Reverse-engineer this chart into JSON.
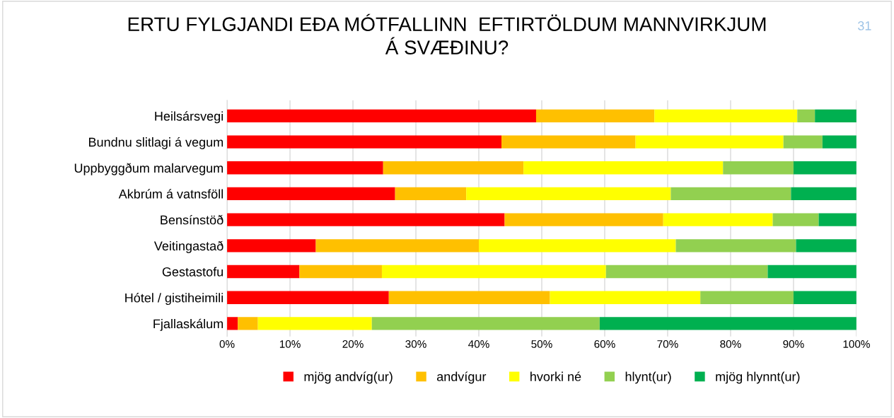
{
  "chart_data": {
    "type": "bar",
    "orientation": "horizontal",
    "stacked": true,
    "title": "ERTU FYLGJANDI EÐA MÓTFALLINN  EFTIRTÖLDUM MANNVIRKJUM\nÁ SVÆÐINU?",
    "annotations": [
      "31"
    ],
    "categories": [
      "Heilsársvegi",
      "Bundnu slitlagi á vegum",
      "Uppbyggðum malarvegum",
      "Akbrúm á vatnsföll",
      "Bensínstöð",
      "Veitingastað",
      "Gestastofu",
      "Hótel / gistiheimili",
      "Fjallaskálum"
    ],
    "series": [
      {
        "name": "mjög andvíg(ur)",
        "color": "#ff0000",
        "values": [
          49.1,
          43.6,
          24.8,
          26.7,
          44.1,
          14.1,
          11.5,
          25.7,
          1.7
        ]
      },
      {
        "name": "andvígur",
        "color": "#ffc000",
        "values": [
          18.8,
          21.3,
          22.3,
          11.3,
          25.2,
          25.9,
          13.1,
          25.6,
          3.2
        ]
      },
      {
        "name": "hvorki né",
        "color": "#ffff00",
        "values": [
          22.7,
          23.5,
          31.7,
          32.5,
          17.4,
          31.3,
          35.6,
          23.9,
          18.1
        ]
      },
      {
        "name": "hlynt(ur)",
        "color": "#92d050",
        "values": [
          2.8,
          6.2,
          11.2,
          19.1,
          7.3,
          19.1,
          25.7,
          14.8,
          36.2
        ]
      },
      {
        "name": "mjög hlynnt(ur)",
        "color": "#00b050",
        "values": [
          6.6,
          5.4,
          10.0,
          10.4,
          6.0,
          9.6,
          14.1,
          10.0,
          40.8
        ]
      }
    ],
    "xlim": [
      0,
      100
    ],
    "xticks": [
      {
        "value": 0,
        "label": "0%"
      },
      {
        "value": 10,
        "label": "10%"
      },
      {
        "value": 20,
        "label": "20%"
      },
      {
        "value": 30,
        "label": "30%"
      },
      {
        "value": 40,
        "label": "40%"
      },
      {
        "value": 50,
        "label": "50%"
      },
      {
        "value": 60,
        "label": "60%"
      },
      {
        "value": 70,
        "label": "70%"
      },
      {
        "value": 80,
        "label": "80%"
      },
      {
        "value": 90,
        "label": "90%"
      },
      {
        "value": 100,
        "label": "100%"
      }
    ],
    "grid": "x",
    "legend": "bottom"
  }
}
